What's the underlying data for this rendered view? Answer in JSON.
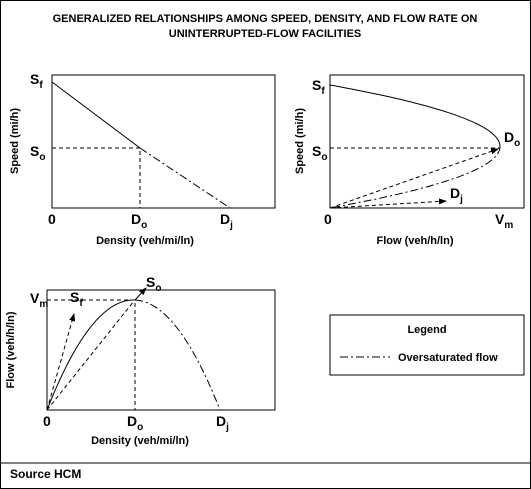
{
  "header": {
    "title_lines": [
      "GENERALIZED RELATIONSHIPS AMONG SPEED, DENSITY, AND FLOW RATE ON",
      "UNINTERRUPTED-FLOW FACILITIES"
    ]
  },
  "panels": [
    {
      "y_label": "Speed (mi/h)",
      "x_label": "Density (veh/mi/ln)",
      "labels": [
        {
          "base": "S",
          "sub": "f"
        },
        {
          "base": "S",
          "sub": "o"
        },
        {
          "base": "0"
        },
        {
          "base": "D",
          "sub": "o"
        },
        {
          "base": "D",
          "sub": "j"
        }
      ]
    },
    {
      "y_label": "Speed (mi/h)",
      "x_label": "Flow (veh/h/ln)",
      "labels": [
        {
          "base": "S",
          "sub": "f"
        },
        {
          "base": "S",
          "sub": "o"
        },
        {
          "base": "0"
        },
        {
          "base": "V",
          "sub": "m"
        },
        {
          "base": "D",
          "sub": "o"
        },
        {
          "base": "D",
          "sub": "j"
        }
      ]
    },
    {
      "y_label": "Flow (veh/h/ln)",
      "x_label": "Density (veh/mi/ln)",
      "labels": [
        {
          "base": "V",
          "sub": "m"
        },
        {
          "base": "S",
          "sub": "f"
        },
        {
          "base": "S",
          "sub": "o"
        },
        {
          "base": "0"
        },
        {
          "base": "D",
          "sub": "o"
        },
        {
          "base": "D",
          "sub": "j"
        }
      ]
    }
  ],
  "legend": {
    "title": "Legend",
    "entry": "Oversaturated flow"
  },
  "footer": {
    "source": "Source HCM"
  }
}
